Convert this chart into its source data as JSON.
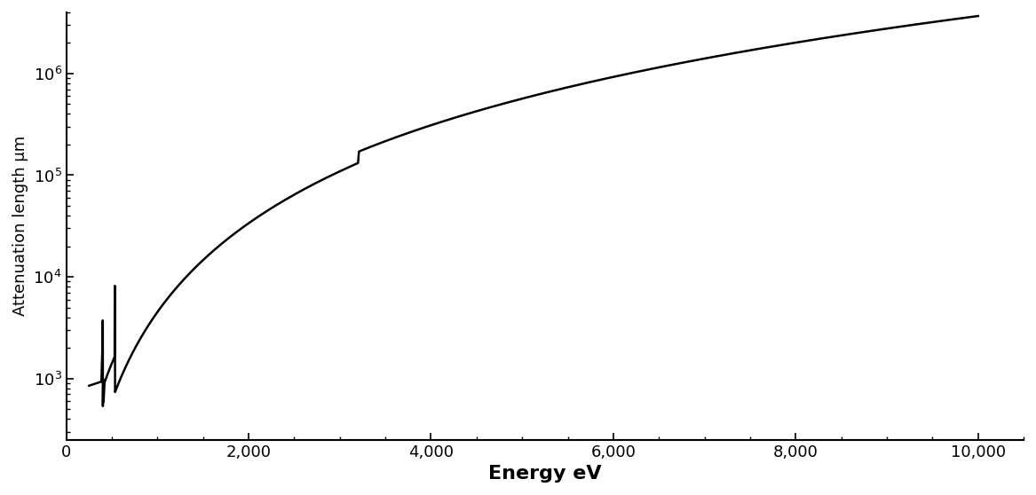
{
  "title": "",
  "xlabel": "Energy eV",
  "ylabel": "Attenuation length μm",
  "xmin": 0,
  "xmax": 10500,
  "ymin": 250,
  "ymax": 4000000.0,
  "xticks": [
    0,
    2000,
    4000,
    6000,
    8000,
    10000
  ],
  "yticks": [
    1000.0,
    10000.0,
    100000.0,
    1000000.0
  ],
  "line_color": "#000000",
  "line_width": 1.8,
  "background_color": "#ffffff",
  "n_edge_eV": 401,
  "o_edge_eV": 532,
  "ar_edge_eV": 3206,
  "val_at_250": 900,
  "val_at_10000": 1600000
}
